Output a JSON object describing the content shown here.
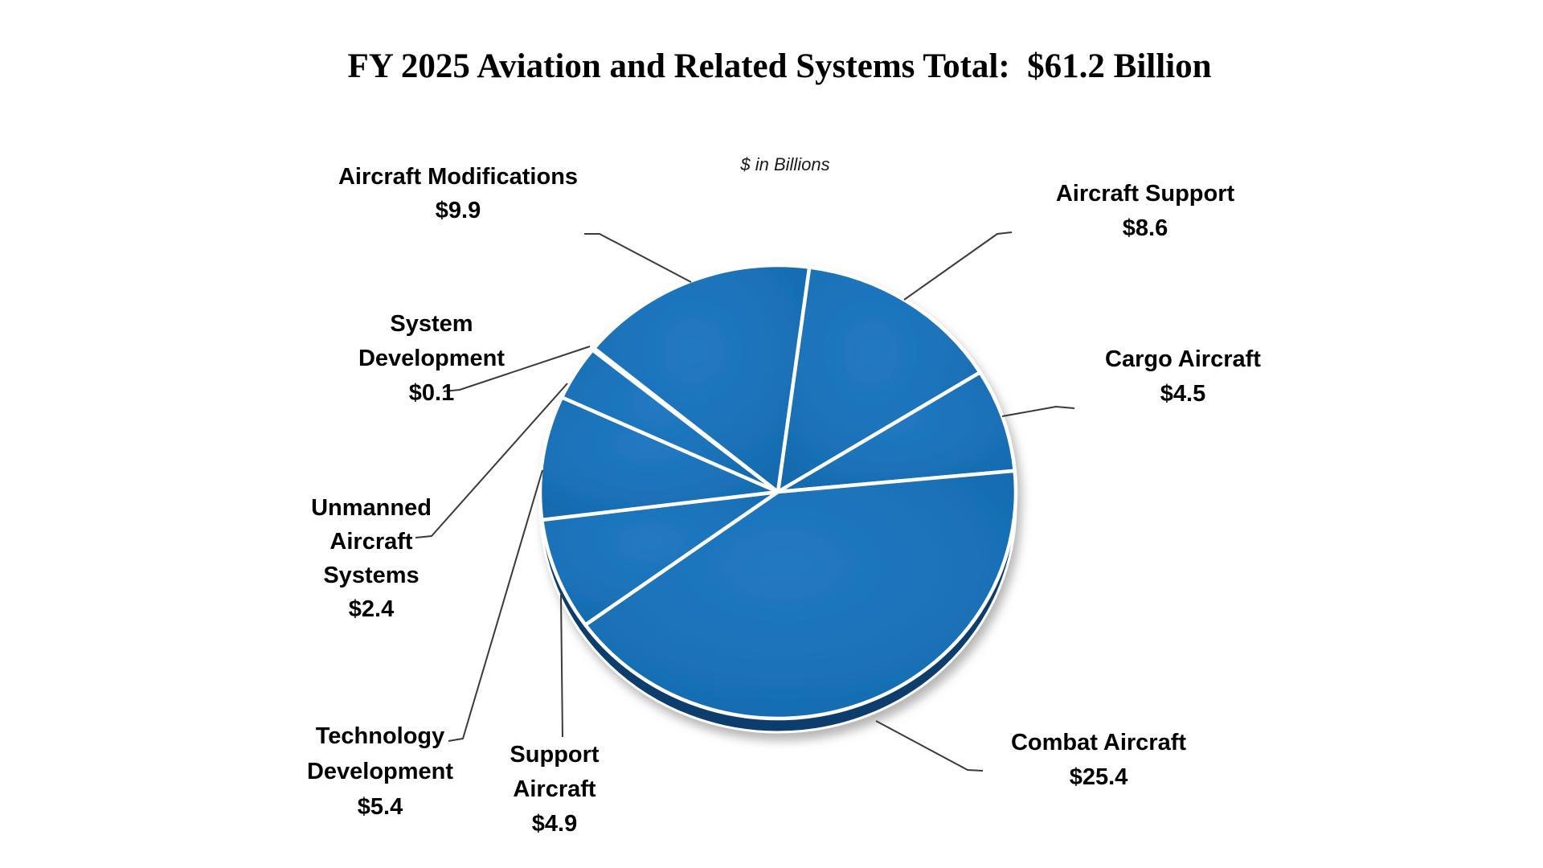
{
  "title": "FY 2025 Aviation and Related Systems Total:  $61.2 Billion",
  "subtitle": "$ in Billions",
  "colors": {
    "background": "#ffffff",
    "pie_fill": "#1b72b8",
    "pie_fill_light": "#2279c2",
    "pie_fill_dark": "#1467a9",
    "pie_side": "#0f3e6d",
    "slice_border": "#ffffff",
    "leader_line": "#3a3a3a",
    "label_text": "#000000",
    "title_text": "#000000"
  },
  "chart_data": {
    "type": "pie",
    "title": "FY 2025 Aviation and Related Systems Total:  $61.2 Billion",
    "units_note": "$ in Billions",
    "units": "USD billions",
    "total": 61.2,
    "start_angle_deg": 7.6,
    "direction": "clockwise",
    "style": "3d-pie-single-color",
    "legend_position": "callout-labels",
    "slices": [
      {
        "id": "aircraft_support",
        "name": "Aircraft Support",
        "value": 8.6,
        "display": "$8.6",
        "label_lines": [
          "Aircraft Support",
          "$8.6"
        ]
      },
      {
        "id": "cargo_aircraft",
        "name": "Cargo Aircraft",
        "value": 4.5,
        "display": "$4.5",
        "label_lines": [
          "Cargo Aircraft",
          "$4.5"
        ]
      },
      {
        "id": "combat_aircraft",
        "name": "Combat Aircraft",
        "value": 25.4,
        "display": "$25.4",
        "label_lines": [
          "Combat Aircraft",
          "$25.4"
        ]
      },
      {
        "id": "support_aircraft",
        "name": "Support Aircraft",
        "value": 4.9,
        "display": "$4.9",
        "label_lines": [
          "Support",
          "Aircraft",
          "$4.9"
        ]
      },
      {
        "id": "technology_development",
        "name": "Technology Development",
        "value": 5.4,
        "display": "$5.4",
        "label_lines": [
          "Technology",
          "Development",
          "$5.4"
        ]
      },
      {
        "id": "unmanned_aircraft_systems",
        "name": "Unmanned Aircraft Systems",
        "value": 2.4,
        "display": "$2.4",
        "label_lines": [
          "Unmanned",
          "Aircraft",
          "Systems",
          "$2.4"
        ]
      },
      {
        "id": "system_development",
        "name": "System Development",
        "value": 0.1,
        "display": "$0.1",
        "label_lines": [
          "System",
          "Development",
          "$0.1"
        ]
      },
      {
        "id": "aircraft_modifications",
        "name": "Aircraft Modifications",
        "value": 9.9,
        "display": "$9.9",
        "label_lines": [
          "Aircraft Modifications",
          "$9.9"
        ]
      }
    ]
  }
}
